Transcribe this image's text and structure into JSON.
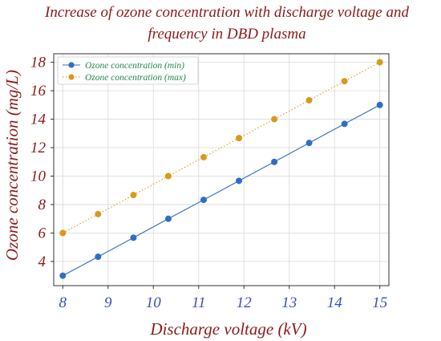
{
  "chart_data": {
    "type": "line",
    "title_lines": [
      "Increase of ozone concentration with discharge voltage and",
      "frequency in DBD plasma"
    ],
    "xlabel": "Discharge voltage (kV)",
    "ylabel": "Ozone concentration (mg/L)",
    "xlim": [
      7.8,
      15.2
    ],
    "ylim": [
      2.3,
      18.6
    ],
    "xticks": [
      8,
      9,
      10,
      11,
      12,
      13,
      14,
      15
    ],
    "yticks": [
      4,
      6,
      8,
      10,
      12,
      14,
      16,
      18
    ],
    "grid": true,
    "legend_position": "top-left",
    "x": [
      8.0,
      8.78,
      9.56,
      10.33,
      11.11,
      11.89,
      12.67,
      13.44,
      14.22,
      15.0
    ],
    "series": [
      {
        "name": "Ozone concentration (min)",
        "color": "#2f6ec4",
        "line_style": "solid",
        "values": [
          3.0,
          4.33,
          5.67,
          7.0,
          8.33,
          9.67,
          11.0,
          12.33,
          13.67,
          15.0
        ]
      },
      {
        "name": "Ozone concentration (max)",
        "color": "#d89a1c",
        "line_style": "dotted",
        "values": [
          6.0,
          7.33,
          8.67,
          10.0,
          11.33,
          12.67,
          14.0,
          15.33,
          16.67,
          18.0
        ]
      }
    ],
    "colors": {
      "title": "#8b1a1a",
      "axis_label": "#8b1a1a",
      "ytick": "#8b1a1a",
      "xtick": "#3b4fb8",
      "legend_text": "#1f8a4c"
    }
  }
}
